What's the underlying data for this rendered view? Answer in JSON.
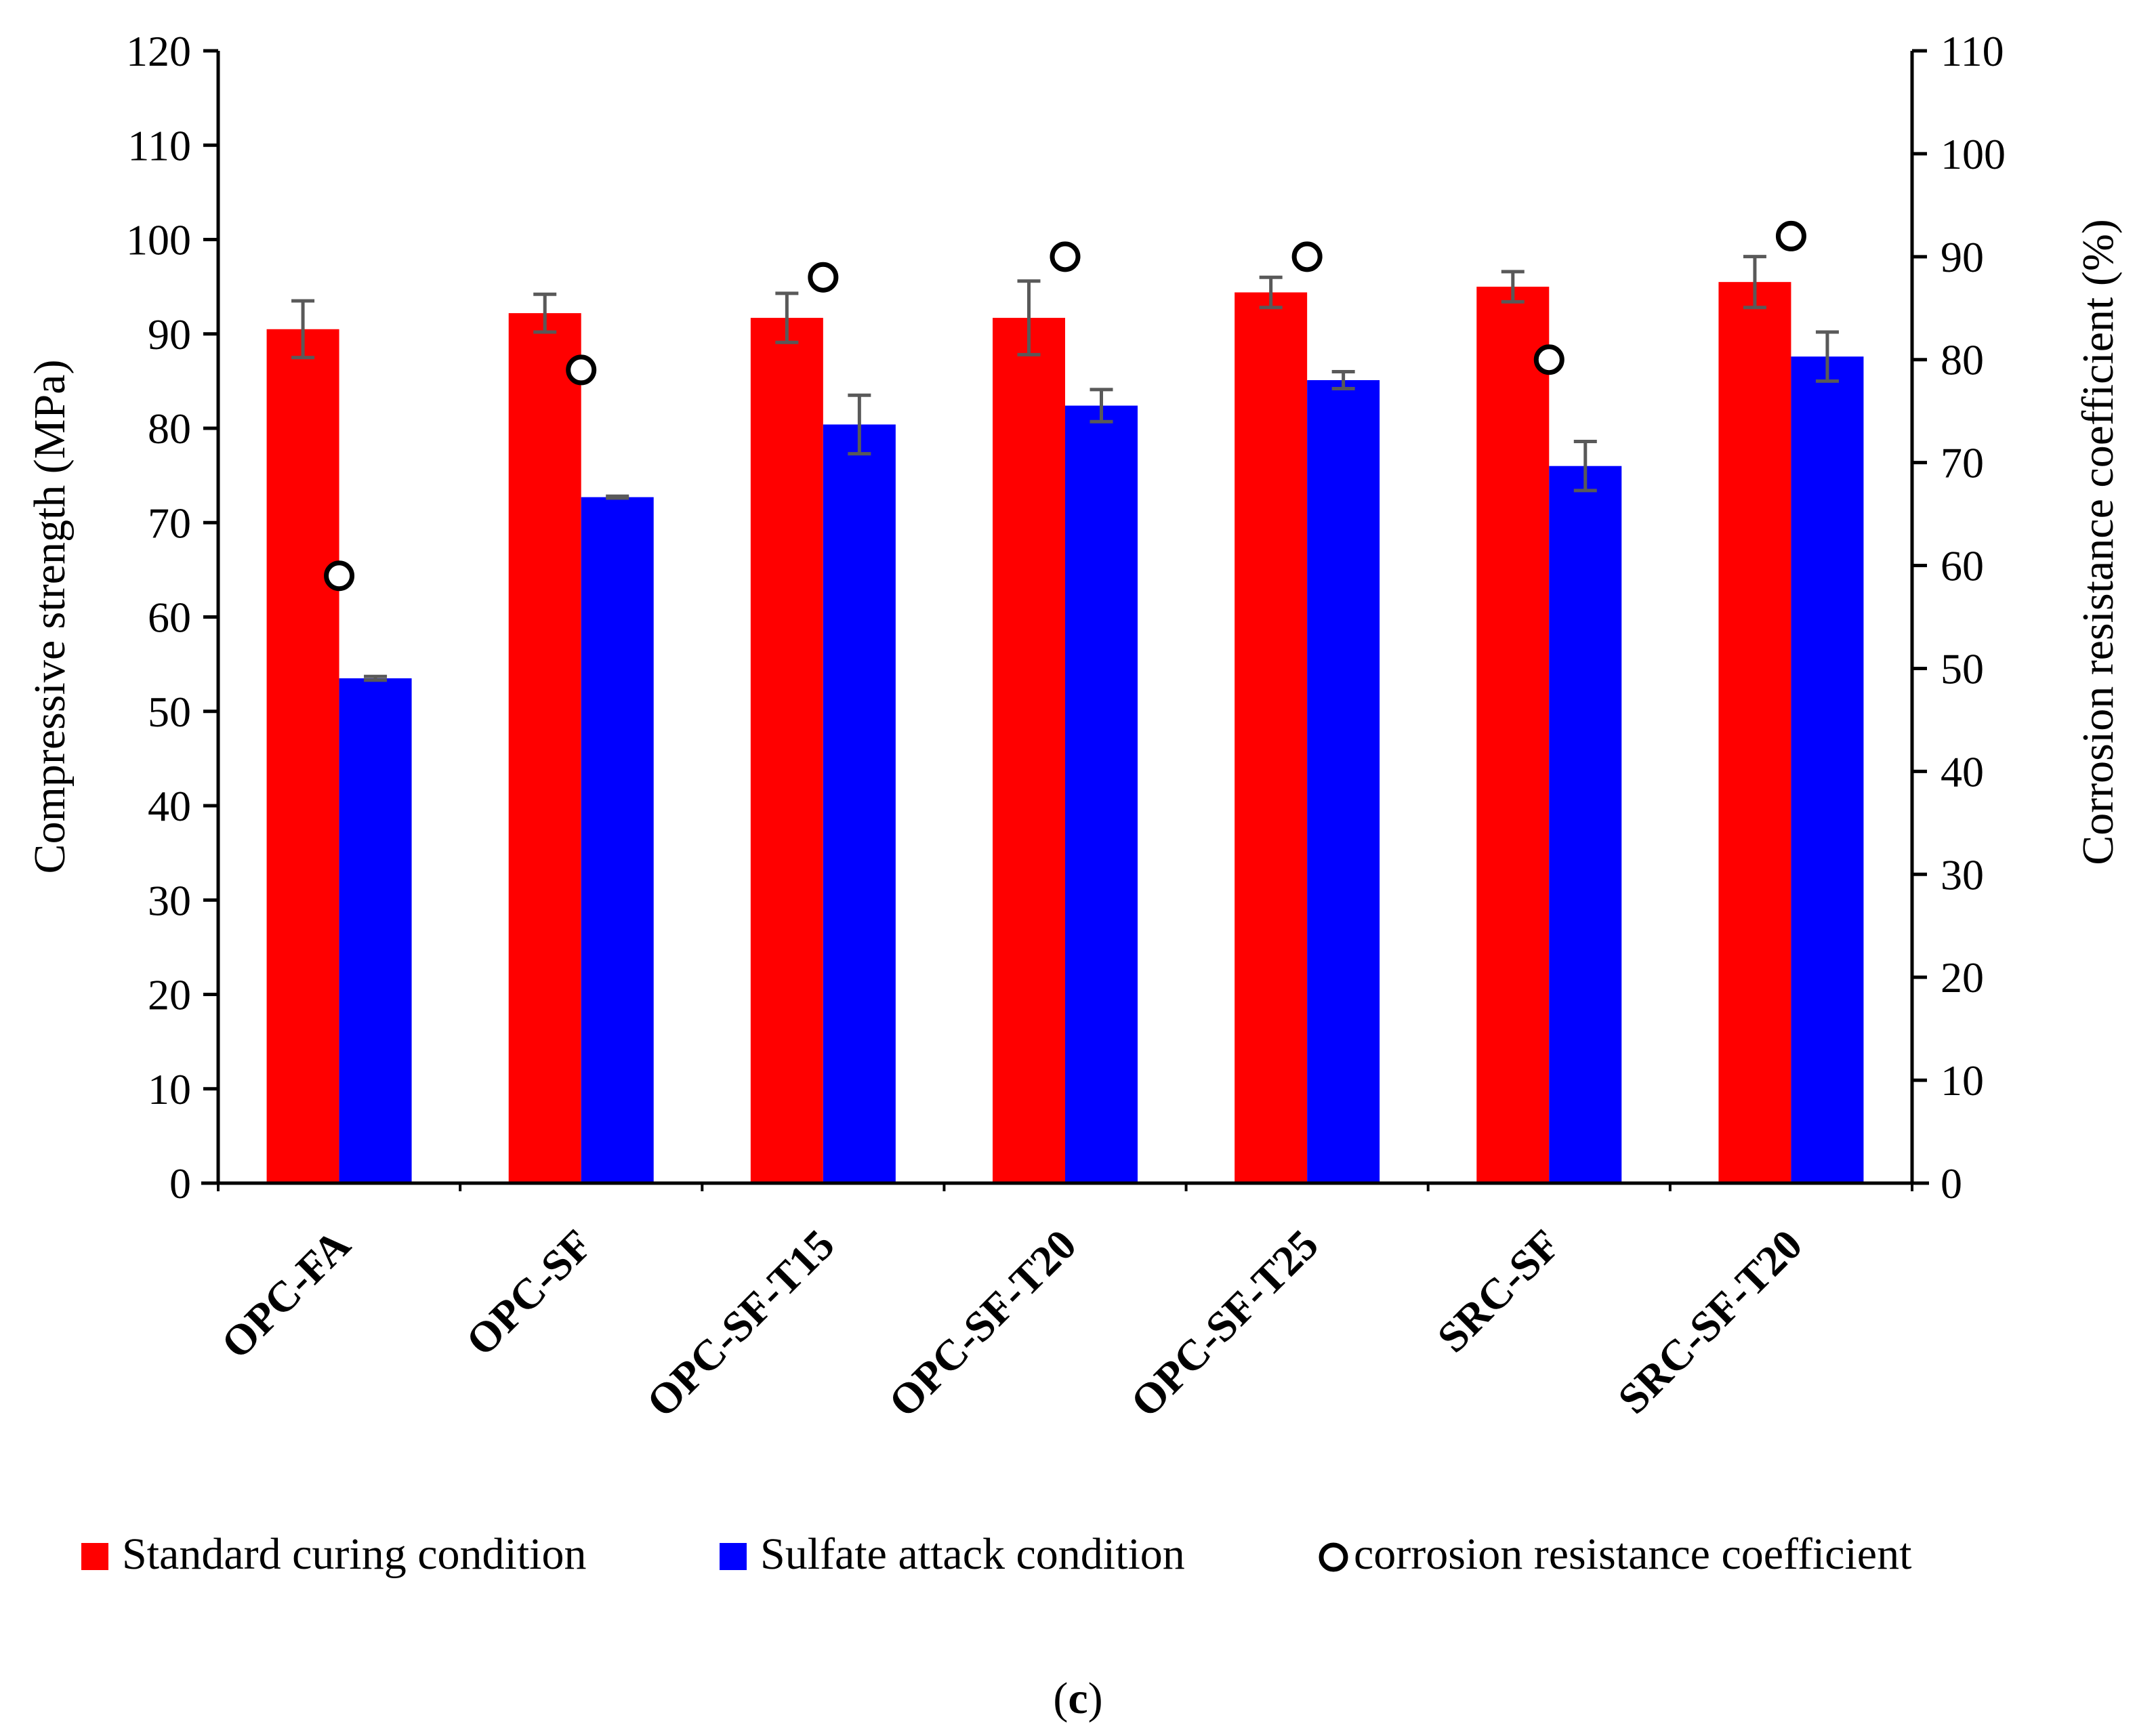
{
  "chart_data": {
    "type": "bar",
    "categories": [
      "OPC-FA",
      "OPC-SF",
      "OPC-SF-T15",
      "OPC-SF-T20",
      "OPC-SF-T25",
      "SRC-SF",
      "SRC-SF-T20"
    ],
    "series": [
      {
        "name": "Standard curing condition",
        "axis": "left",
        "color": "#ff0000",
        "values": [
          90.5,
          92.2,
          91.7,
          91.7,
          94.4,
          95.0,
          95.5
        ],
        "errors": [
          3.0,
          2.0,
          2.6,
          3.9,
          1.6,
          1.6,
          2.7
        ]
      },
      {
        "name": "Sulfate attack condition",
        "axis": "left",
        "color": "#0000ff",
        "values": [
          53.5,
          72.7,
          80.4,
          82.4,
          85.1,
          76.0,
          87.6
        ],
        "errors": [
          0.2,
          0.1,
          3.1,
          1.7,
          0.9,
          2.6,
          2.6
        ]
      },
      {
        "name": "corrosion resistance coefficient",
        "axis": "right",
        "type": "scatter",
        "values": [
          59,
          79,
          88,
          90,
          90,
          80,
          92
        ]
      }
    ],
    "ylabel": "Compressive strength (MPa)",
    "y2label": "Corrosion resistance coefficient (%)",
    "ylim": [
      0,
      120
    ],
    "y2lim": [
      0,
      110
    ],
    "yticks": [
      "0",
      "10",
      "20",
      "30",
      "40",
      "50",
      "60",
      "70",
      "80",
      "90",
      "100",
      "110",
      "120"
    ],
    "y2ticks": [
      "0",
      "10",
      "20",
      "30",
      "40",
      "50",
      "60",
      "70",
      "80",
      "90",
      "100",
      "110"
    ],
    "legend_position": "bottom",
    "caption": "(c)"
  },
  "legend": {
    "items": [
      "Standard curing condition",
      "Sulfate attack condition",
      "corrosion resistance coefficient"
    ]
  },
  "caption": {
    "open": "(",
    "letter": "c",
    "close": ")"
  }
}
